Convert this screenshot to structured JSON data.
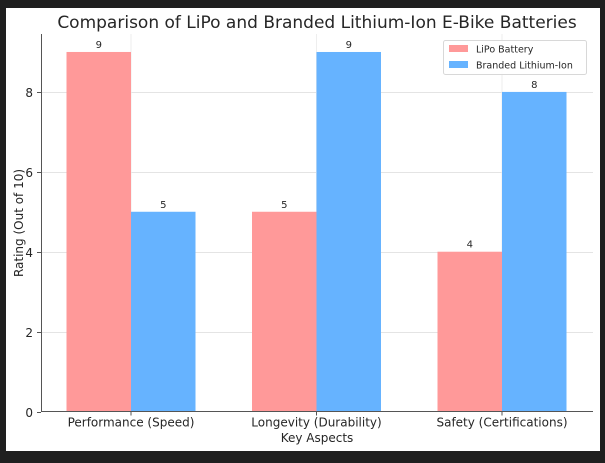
{
  "chart_data": {
    "type": "bar",
    "title": "Comparison of LiPo and Branded Lithium-Ion E-Bike Batteries",
    "xlabel": "Key Aspects",
    "ylabel": "Rating (Out of 10)",
    "categories": [
      "Performance (Speed)",
      "Longevity (Durability)",
      "Safety (Certifications)"
    ],
    "series": [
      {
        "name": "LiPo Battery",
        "values": [
          9,
          5,
          4
        ],
        "color": "#ff9999",
        "labels": [
          "9",
          "5",
          "4"
        ]
      },
      {
        "name": "Branded Lithium-Ion",
        "values": [
          5,
          9,
          8
        ],
        "color": "#66b3ff",
        "labels": [
          "5",
          "9",
          "8"
        ]
      }
    ],
    "ylim": [
      0,
      9.45
    ],
    "yticks": [
      0,
      2,
      4,
      6,
      8
    ],
    "ytick_labels": [
      "0",
      "2",
      "4",
      "6",
      "8"
    ],
    "grid": true,
    "legend_position": "top-right"
  }
}
